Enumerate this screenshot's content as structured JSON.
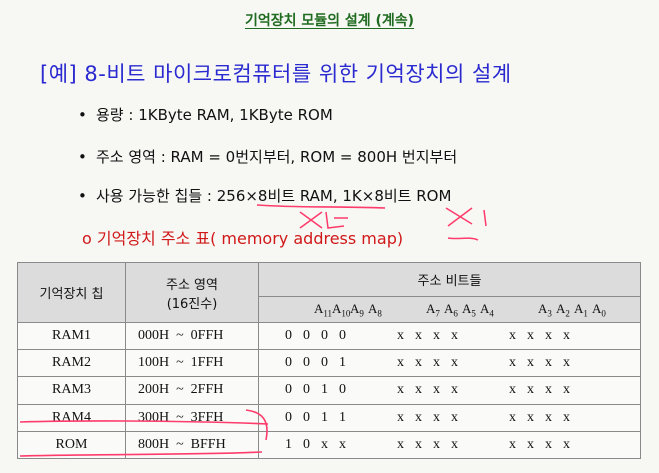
{
  "title": "기억장치 모듈의 설계 (계속)",
  "heading": "[예] 8-비트 마이크로컴퓨터를 위한 기억장치의 설계",
  "bullets": [
    "용량 : 1KByte RAM, 1KByte ROM",
    "주소 영역 : RAM = 0번지부터, ROM = 800H 번지부터",
    "사용 가능한 칩들 : 256×8비트 RAM, 1K×8비트 ROM"
  ],
  "subnote": "o 기억장치 주소 표( memory address map)",
  "table": {
    "headers": {
      "chip": "기억장치 칩",
      "range_line1": "주소 영역",
      "range_line2": "(16진수)",
      "bits": "주소 비트들"
    },
    "bit_labels": [
      [
        "A11",
        "A10",
        "A9",
        "A8"
      ],
      [
        "A7",
        "A6",
        "A5",
        "A4"
      ],
      [
        "A3",
        "A2",
        "A1",
        "A0"
      ]
    ],
    "rows": [
      {
        "chip": "RAM1",
        "range": "000H  ~  0FFH",
        "bits": [
          [
            "0",
            "0",
            "0",
            "0"
          ],
          [
            "x",
            "x",
            "x",
            "x"
          ],
          [
            "x",
            "x",
            "x",
            "x"
          ]
        ]
      },
      {
        "chip": "RAM2",
        "range": "100H  ~  1FFH",
        "bits": [
          [
            "0",
            "0",
            "0",
            "1"
          ],
          [
            "x",
            "x",
            "x",
            "x"
          ],
          [
            "x",
            "x",
            "x",
            "x"
          ]
        ]
      },
      {
        "chip": "RAM3",
        "range": "200H  ~  2FFH",
        "bits": [
          [
            "0",
            "0",
            "1",
            "0"
          ],
          [
            "x",
            "x",
            "x",
            "x"
          ],
          [
            "x",
            "x",
            "x",
            "x"
          ]
        ]
      },
      {
        "chip": "RAM4",
        "range": "300H  ~  3FFH",
        "bits": [
          [
            "0",
            "0",
            "1",
            "1"
          ],
          [
            "x",
            "x",
            "x",
            "x"
          ],
          [
            "x",
            "x",
            "x",
            "x"
          ]
        ]
      },
      {
        "chip": "ROM",
        "range": "800H  ~  BFFH",
        "bits": [
          [
            "1",
            "0",
            "x",
            "x"
          ],
          [
            "x",
            "x",
            "x",
            "x"
          ],
          [
            "x",
            "x",
            "x",
            "x"
          ]
        ]
      }
    ]
  },
  "colors": {
    "title": "#1f6b1f",
    "heading": "#2a2ad0",
    "subnote": "#d01818",
    "annotation": "#ff3b6b"
  }
}
